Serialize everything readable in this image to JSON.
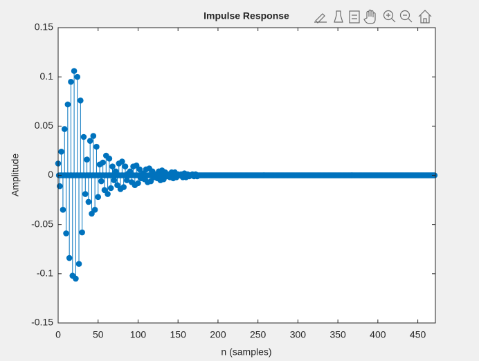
{
  "chart_data": {
    "type": "stem",
    "title": "Impulse Response",
    "x_label": "n (samples)",
    "y_label": "Amplitude",
    "color": "#0072bd",
    "xlim": [
      0,
      472
    ],
    "ylim": [
      -0.15,
      0.15
    ],
    "xticks": [
      0,
      50,
      100,
      150,
      200,
      250,
      300,
      350,
      400,
      450
    ],
    "yticks": [
      -0.15,
      -0.1,
      -0.05,
      0,
      0.05,
      0.1,
      0.15
    ],
    "x": [
      0,
      1,
      2,
      3,
      4,
      5,
      6,
      7,
      8,
      9,
      10,
      11,
      12,
      13,
      14,
      15,
      16,
      17,
      18,
      19,
      20,
      21,
      22,
      23,
      24,
      25,
      26,
      27,
      28,
      29,
      30,
      31,
      32,
      33,
      34,
      35,
      36,
      37,
      38,
      39,
      40,
      41,
      42,
      43,
      44,
      45,
      46,
      47,
      48,
      49,
      50,
      51,
      52,
      53,
      54,
      55,
      56,
      57,
      58,
      59,
      60,
      61,
      62,
      63,
      64,
      65,
      66,
      67,
      68,
      69,
      70,
      71,
      72,
      73,
      74,
      75,
      76,
      77,
      78,
      79,
      80,
      81,
      82,
      83,
      84,
      85,
      86,
      87,
      88,
      89,
      90,
      91,
      92,
      93,
      94,
      95,
      96,
      97,
      98,
      99,
      100,
      101,
      102,
      103,
      104,
      105,
      106,
      107,
      108,
      109,
      110,
      111,
      112,
      113,
      114,
      115,
      116,
      117,
      118,
      119,
      120,
      121,
      122,
      123,
      124,
      125,
      126,
      127,
      128,
      129,
      130,
      131,
      132,
      133,
      134,
      135,
      136,
      137,
      138,
      139,
      140,
      141,
      142,
      143,
      144,
      145,
      146,
      147,
      148,
      149,
      150,
      151,
      152,
      153,
      154,
      155,
      156,
      157,
      158,
      159,
      160,
      161,
      162,
      163,
      164,
      165,
      166,
      167,
      168,
      169,
      170,
      171,
      172,
      173,
      174,
      175,
      176,
      177,
      178,
      179,
      180,
      181,
      182,
      183,
      184,
      185,
      186,
      187,
      188,
      189,
      190,
      191,
      192,
      193,
      194,
      195,
      196,
      197,
      198,
      199,
      200,
      201,
      202,
      203,
      204,
      205,
      206,
      207,
      208,
      209,
      210,
      211,
      212,
      213,
      214,
      215,
      216,
      217,
      218,
      219,
      220,
      221,
      222,
      223,
      224,
      225,
      226,
      227,
      228,
      229,
      230,
      231,
      232,
      233,
      234,
      235,
      236,
      237,
      238,
      239,
      240,
      241,
      242,
      243,
      244,
      245,
      246,
      247,
      248,
      249,
      250,
      251,
      252,
      253,
      254,
      255,
      256,
      257,
      258,
      259,
      260,
      261,
      262,
      263,
      264,
      265,
      266,
      267,
      268,
      269,
      270,
      271,
      272,
      273,
      274,
      275,
      276,
      277,
      278,
      279,
      280,
      281,
      282,
      283,
      284,
      285,
      286,
      287,
      288,
      289,
      290,
      291,
      292,
      293,
      294,
      295,
      296,
      297,
      298,
      299,
      300,
      301,
      302,
      303,
      304,
      305,
      306,
      307,
      308,
      309,
      310,
      311,
      312,
      313,
      314,
      315,
      316,
      317,
      318,
      319,
      320,
      321,
      322,
      323,
      324,
      325,
      326,
      327,
      328,
      329,
      330,
      331,
      332,
      333,
      334,
      335,
      336,
      337,
      338,
      339,
      340,
      341,
      342,
      343,
      344,
      345,
      346,
      347,
      348,
      349,
      350,
      351,
      352,
      353,
      354,
      355,
      356,
      357,
      358,
      359,
      360,
      361,
      362,
      363,
      364,
      365,
      366,
      367,
      368,
      369,
      370,
      371,
      372,
      373,
      374,
      375,
      376,
      377,
      378,
      379,
      380,
      381,
      382,
      383,
      384,
      385,
      386,
      387,
      388,
      389,
      390,
      391,
      392,
      393,
      394,
      395,
      396,
      397,
      398,
      399,
      400,
      401,
      402,
      403,
      404,
      405,
      406,
      407,
      408,
      409,
      410,
      411,
      412,
      413,
      414,
      415,
      416,
      417,
      418,
      419,
      420,
      421,
      422,
      423,
      424,
      425,
      426,
      427,
      428,
      429,
      430,
      431,
      432,
      433,
      434,
      435,
      436,
      437,
      438,
      439,
      440,
      441,
      442,
      443,
      444,
      445,
      446,
      447,
      448,
      449,
      450,
      451,
      452,
      453,
      454,
      455,
      456,
      457,
      458,
      459,
      460,
      461,
      462,
      463,
      464,
      465,
      466,
      467,
      468,
      469,
      470,
      471
    ],
    "values": [
      0.012,
      0,
      -0.011,
      0,
      0.024,
      0,
      -0.035,
      0,
      0.047,
      0,
      -0.059,
      0,
      0.072,
      0,
      -0.084,
      0,
      0.095,
      0,
      -0.102,
      0,
      0.106,
      0,
      -0.105,
      0,
      0.1,
      0,
      -0.09,
      0,
      0.076,
      0,
      -0.058,
      0,
      0.039,
      0,
      -0.019,
      0,
      0.016,
      0,
      -0.027,
      0,
      0.035,
      0,
      -0.039,
      0,
      0.04,
      0,
      -0.035,
      0,
      0.029,
      0,
      -0.022,
      0,
      0.011,
      0,
      -0.006,
      0,
      0.013,
      0,
      -0.015,
      0,
      0.02,
      0,
      -0.019,
      0,
      0.017,
      0,
      -0.013,
      0,
      0.009,
      0,
      -0.005,
      0,
      0.004,
      0,
      -0.01,
      0,
      0.012,
      0,
      -0.014,
      0,
      0.014,
      0,
      -0.012,
      0,
      0.009,
      0,
      -0.005,
      0,
      0.002,
      0,
      0.004,
      0,
      -0.007,
      0,
      0.009,
      0,
      -0.01,
      0,
      0.01,
      0,
      -0.008,
      0,
      0.006,
      0,
      -0.003,
      0,
      0.002,
      0,
      -0.004,
      0,
      0.006,
      0,
      -0.007,
      0,
      0.007,
      0,
      -0.006,
      0,
      0.004,
      0,
      -0.002,
      0,
      0.001,
      0,
      -0.003,
      0,
      0.004,
      0,
      -0.005,
      0,
      0.005,
      0,
      -0.004,
      0,
      0.003,
      0,
      -0.001,
      0,
      0.001,
      0,
      -0.002,
      0,
      0.003,
      0,
      -0.003,
      0,
      0.003,
      0,
      -0.002,
      0,
      0.001,
      0,
      0,
      0,
      0.001,
      0,
      -0.002,
      0,
      0.002,
      0,
      -0.002,
      0,
      0.001,
      0,
      -0.001,
      0,
      0,
      0,
      0.001,
      0,
      -0.001,
      0,
      0.001,
      0,
      -0.001,
      0,
      0,
      0,
      0,
      0,
      0,
      0,
      0,
      0,
      0,
      0,
      0,
      0,
      0,
      0,
      0,
      0,
      0,
      0,
      0,
      0,
      0,
      0,
      0,
      0,
      0,
      0,
      0,
      0,
      0,
      0,
      0,
      0,
      0,
      0,
      0,
      0,
      0,
      0,
      0,
      0,
      0,
      0,
      0,
      0,
      0,
      0,
      0,
      0,
      0,
      0,
      0,
      0,
      0,
      0,
      0,
      0,
      0,
      0,
      0,
      0,
      0,
      0,
      0,
      0,
      0,
      0,
      0,
      0,
      0,
      0,
      0,
      0,
      0,
      0,
      0,
      0,
      0,
      0,
      0,
      0,
      0,
      0,
      0,
      0,
      0,
      0,
      0,
      0,
      0,
      0,
      0,
      0,
      0,
      0,
      0,
      0,
      0,
      0,
      0,
      0,
      0,
      0,
      0,
      0,
      0,
      0,
      0,
      0,
      0,
      0,
      0,
      0,
      0,
      0,
      0,
      0,
      0,
      0,
      0,
      0,
      0,
      0,
      0,
      0,
      0,
      0,
      0,
      0,
      0,
      0,
      0,
      0,
      0,
      0,
      0,
      0,
      0,
      0,
      0,
      0,
      0,
      0,
      0,
      0,
      0,
      0,
      0,
      0,
      0,
      0,
      0,
      0,
      0,
      0,
      0,
      0,
      0,
      0,
      0,
      0,
      0,
      0,
      0,
      0,
      0,
      0,
      0,
      0,
      0,
      0,
      0,
      0,
      0,
      0,
      0,
      0,
      0,
      0,
      0,
      0,
      0,
      0,
      0,
      0,
      0,
      0,
      0,
      0,
      0,
      0,
      0,
      0,
      0,
      0,
      0,
      0,
      0,
      0,
      0,
      0,
      0,
      0,
      0,
      0,
      0,
      0,
      0,
      0,
      0,
      0,
      0,
      0,
      0,
      0,
      0,
      0,
      0,
      0,
      0,
      0,
      0,
      0,
      0,
      0,
      0,
      0,
      0,
      0,
      0,
      0,
      0,
      0,
      0,
      0,
      0,
      0,
      0,
      0,
      0,
      0,
      0,
      0,
      0,
      0,
      0,
      0,
      0,
      0,
      0,
      0,
      0,
      0,
      0,
      0,
      0,
      0,
      0,
      0,
      0,
      0,
      0,
      0,
      0,
      0,
      0,
      0,
      0,
      0,
      0,
      0,
      0,
      0,
      0,
      0,
      0,
      0,
      0,
      0,
      0,
      0,
      0,
      0,
      0,
      0,
      0,
      0,
      0,
      0,
      0,
      0,
      0,
      0,
      0,
      0,
      0,
      0
    ]
  }
}
